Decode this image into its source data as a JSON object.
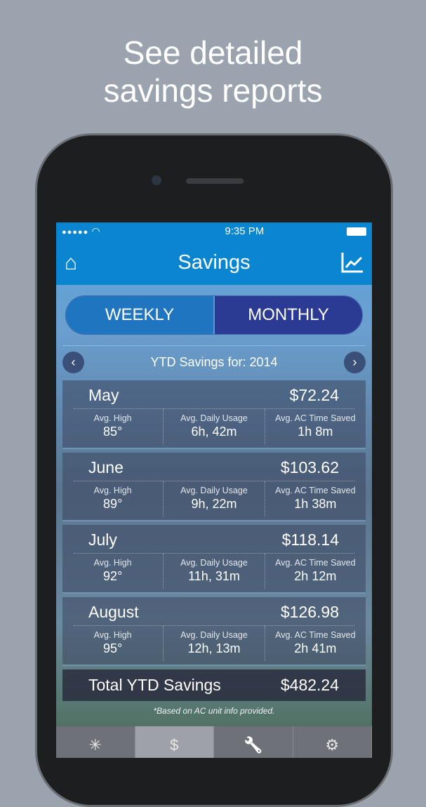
{
  "headline": [
    "See detailed",
    "savings reports"
  ],
  "status": {
    "time": "9:35 PM",
    "signal": "●●●●●"
  },
  "nav": {
    "title": "Savings",
    "left_icon": "home-icon",
    "right_icon": "line-chart-icon"
  },
  "segment": {
    "weekly": "WEEKLY",
    "monthly": "MONTHLY",
    "selected": "MONTHLY"
  },
  "ytd": {
    "label": "YTD Savings for: 2014",
    "prev": "‹",
    "next": "›"
  },
  "months": [
    {
      "name": "May",
      "amount": "$72.24",
      "high_label": "Avg. High",
      "high": "85°",
      "usage_label": "Avg. Daily Usage",
      "usage": "6h, 42m",
      "saved_label": "Avg. AC Time Saved",
      "saved": "1h 8m"
    },
    {
      "name": "June",
      "amount": "$103.62",
      "high_label": "Avg. High",
      "high": "89°",
      "usage_label": "Avg. Daily Usage",
      "usage": "9h, 22m",
      "saved_label": "Avg. AC Time Saved",
      "saved": "1h 38m"
    },
    {
      "name": "July",
      "amount": "$118.14",
      "high_label": "Avg. High",
      "high": "92°",
      "usage_label": "Avg. Daily Usage",
      "usage": "11h, 31m",
      "saved_label": "Avg. AC Time Saved",
      "saved": "2h 12m"
    },
    {
      "name": "August",
      "amount": "$126.98",
      "high_label": "Avg. High",
      "high": "95°",
      "usage_label": "Avg. Daily Usage",
      "usage": "12h, 13m",
      "saved_label": "Avg. AC Time Saved",
      "saved": "2h 41m"
    }
  ],
  "total": {
    "label": "Total YTD Savings",
    "amount": "$482.24"
  },
  "footnote": "*Based on AC unit info provided.",
  "tabs": [
    {
      "icon": "sparkle-icon",
      "glyph": "✳"
    },
    {
      "icon": "dollar-icon",
      "glyph": "$",
      "active": true
    },
    {
      "icon": "wrench-icon",
      "glyph": "🔧"
    },
    {
      "icon": "gear-icon",
      "glyph": "⚙"
    }
  ],
  "colors": {
    "nav": "#0a86d0",
    "selected_segment": "#2b3a92",
    "background": "#9ba4ae"
  }
}
